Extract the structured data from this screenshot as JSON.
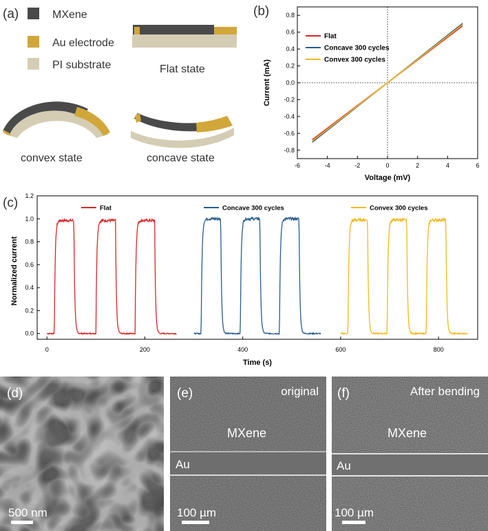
{
  "panel_labels": {
    "a": "(a)",
    "b": "(b)",
    "c": "(c)",
    "d": "(d)",
    "e": "(e)",
    "f": "(f)"
  },
  "colors": {
    "mxene": "#4a4a4a",
    "au": "#d1a73a",
    "pi": "#d4cdb4",
    "flat": "#d62728",
    "concave": "#2a5b8c",
    "convex": "#f2b91e"
  },
  "schematic": {
    "legend": [
      "MXene",
      "Au electrode",
      "PI substrate"
    ],
    "flat_label": "Flat state",
    "convex_label": "convex state",
    "concave_label": "concave state"
  },
  "sem": {
    "d": {
      "scale": "500 nm"
    },
    "e": {
      "title": "original",
      "mxene": "MXene",
      "au": "Au",
      "scale": "100 µm"
    },
    "f": {
      "title": "After bending",
      "mxene": "MXene",
      "au": "Au",
      "scale": "100 µm"
    }
  },
  "chart_data": [
    {
      "type": "line",
      "panel": "b",
      "xlabel": "Voltage (mV)",
      "ylabel": "Current (mA)",
      "xlim": [
        -6,
        6
      ],
      "ylim": [
        -0.9,
        0.9
      ],
      "xticks": [
        -6,
        -4,
        -2,
        0,
        2,
        4,
        6
      ],
      "yticks": [
        -0.8,
        -0.6,
        -0.4,
        -0.2,
        0.0,
        0.2,
        0.4,
        0.6,
        0.8
      ],
      "ytick_labels": [
        "-0.8",
        "-0.6",
        "-0.4",
        "-0.2",
        "0.0",
        "0.2",
        "0.4",
        "0.6",
        "0.8"
      ],
      "legend": "top-left",
      "series": [
        {
          "name": "Flat",
          "color": "#d62728",
          "x": [
            -5,
            5
          ],
          "y": [
            -0.675,
            0.675
          ]
        },
        {
          "name": "Concave 300 cycles",
          "color": "#2a5b8c",
          "x": [
            -5,
            5
          ],
          "y": [
            -0.705,
            0.705
          ]
        },
        {
          "name": "Convex 300 cycles",
          "color": "#f2b91e",
          "x": [
            -5,
            5
          ],
          "y": [
            -0.69,
            0.69
          ]
        }
      ]
    },
    {
      "type": "line",
      "panel": "c",
      "xlabel": "Time (s)",
      "ylabel": "Normalized current",
      "xlim": [
        -20,
        880
      ],
      "ylim": [
        -0.05,
        1.2
      ],
      "xticks": [
        0,
        200,
        400,
        600,
        800
      ],
      "yticks": [
        0.0,
        0.2,
        0.4,
        0.6,
        0.8,
        1.0,
        1.2
      ],
      "ytick_labels": [
        "0.0",
        "0.2",
        "0.4",
        "0.6",
        "0.8",
        "1.0",
        "1.2"
      ],
      "series": [
        {
          "name": "Flat",
          "color": "#d62728",
          "x_start": 0,
          "x_end": 265,
          "on_intervals": [
            [
              15,
              55
            ],
            [
              100,
              140
            ],
            [
              180,
              220
            ]
          ],
          "high": 0.985,
          "low": 0.0
        },
        {
          "name": "Concave 300 cycles",
          "color": "#2a5b8c",
          "x_start": 300,
          "x_end": 560,
          "on_intervals": [
            [
              315,
              355
            ],
            [
              395,
              435
            ],
            [
              475,
              515
            ]
          ],
          "high": 1.0,
          "low": 0.0
        },
        {
          "name": "Convex 300 cycles",
          "color": "#f2b91e",
          "x_start": 600,
          "x_end": 860,
          "on_intervals": [
            [
              615,
              655
            ],
            [
              695,
              735
            ],
            [
              775,
              815
            ]
          ],
          "high": 0.99,
          "low": 0.0
        }
      ]
    }
  ]
}
